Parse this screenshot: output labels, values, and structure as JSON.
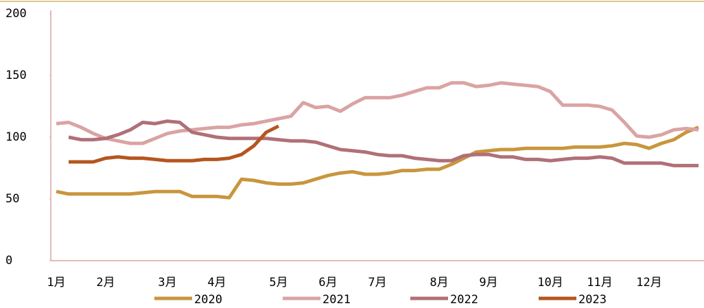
{
  "chart_data": {
    "type": "line",
    "categories": [
      "1月",
      null,
      null,
      null,
      "2月",
      null,
      null,
      null,
      null,
      "3月",
      null,
      null,
      null,
      "4月",
      null,
      null,
      null,
      null,
      "5月",
      null,
      null,
      null,
      "6月",
      null,
      null,
      null,
      "7月",
      null,
      null,
      null,
      null,
      "8月",
      null,
      null,
      null,
      "9月",
      null,
      null,
      null,
      null,
      "10月",
      null,
      null,
      null,
      "11月",
      null,
      null,
      null,
      "12月",
      null,
      null,
      null,
      null
    ],
    "series": [
      {
        "name": "2020",
        "color": "#c8963e",
        "values": [
          56,
          54,
          54,
          54,
          54,
          54,
          54,
          55,
          56,
          56,
          56,
          52,
          52,
          52,
          51,
          66,
          65,
          63,
          62,
          62,
          63,
          66,
          69,
          71,
          72,
          70,
          70,
          71,
          73,
          73,
          74,
          74,
          78,
          83,
          88,
          89,
          90,
          90,
          91,
          91,
          91,
          91,
          92,
          92,
          92,
          93,
          95,
          94,
          91,
          95,
          98,
          104,
          108
        ]
      },
      {
        "name": "2021",
        "color": "#dba3a3",
        "values": [
          111,
          112,
          108,
          103,
          99,
          97,
          95,
          95,
          99,
          103,
          105,
          106,
          107,
          108,
          108,
          110,
          111,
          113,
          115,
          117,
          128,
          124,
          125,
          121,
          127,
          132,
          132,
          132,
          134,
          137,
          140,
          140,
          144,
          144,
          141,
          142,
          144,
          143,
          142,
          141,
          137,
          126,
          126,
          126,
          125,
          122,
          112,
          101,
          100,
          102,
          106,
          107,
          106
        ]
      },
      {
        "name": "2022",
        "color": "#b07078",
        "values": [
          null,
          100,
          98,
          98,
          99,
          102,
          106,
          112,
          111,
          113,
          112,
          104,
          102,
          100,
          99,
          99,
          99,
          99,
          98,
          97,
          97,
          96,
          93,
          90,
          89,
          88,
          86,
          85,
          85,
          83,
          82,
          81,
          81,
          85,
          86,
          86,
          84,
          84,
          82,
          82,
          81,
          82,
          83,
          83,
          84,
          83,
          79,
          79,
          79,
          79,
          77,
          77,
          77
        ]
      },
      {
        "name": "2023",
        "color": "#b5561e",
        "values": [
          null,
          80,
          80,
          80,
          83,
          84,
          83,
          83,
          82,
          81,
          81,
          81,
          82,
          82,
          83,
          86,
          93,
          104,
          109,
          null,
          null,
          null,
          null,
          null,
          null,
          null,
          null,
          null,
          null,
          null,
          null,
          null,
          null,
          null,
          null,
          null,
          null,
          null,
          null,
          null,
          null,
          null,
          null,
          null,
          null,
          null,
          null,
          null,
          null,
          null,
          null,
          null,
          null
        ]
      }
    ],
    "ylim": [
      0,
      200
    ],
    "yticks": [
      0,
      50,
      100,
      150,
      200
    ],
    "grid": false,
    "legend": "bottom"
  }
}
